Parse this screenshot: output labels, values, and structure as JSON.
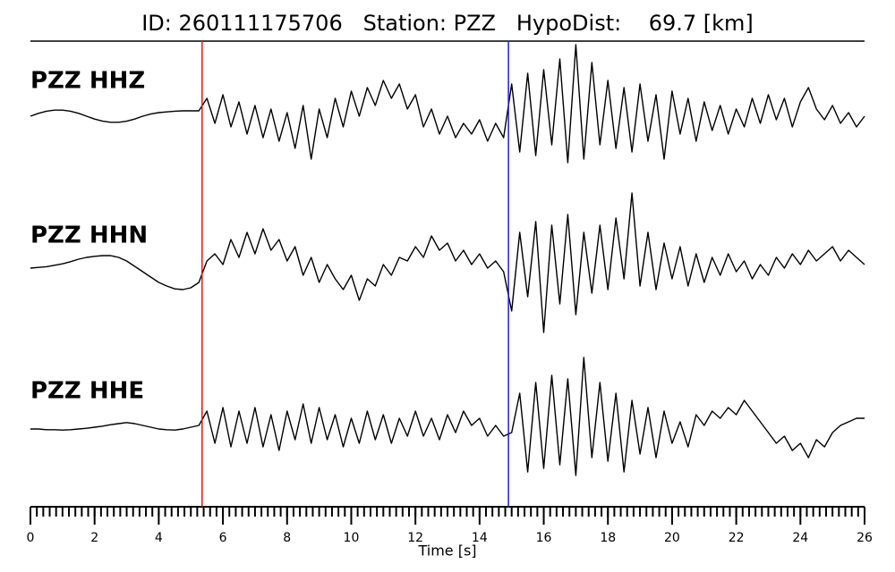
{
  "chart_data": {
    "type": "line",
    "title": "ID: 260111175706   Station: PZZ   HypoDist:    69.7 [km]",
    "xlabel": "Time [s]",
    "x": [
      0,
      0.25,
      0.5,
      0.75,
      1,
      1.25,
      1.5,
      1.75,
      2,
      2.25,
      2.5,
      2.75,
      3,
      3.25,
      3.5,
      3.75,
      4,
      4.25,
      4.5,
      4.75,
      5,
      5.25,
      5.5,
      5.75,
      6,
      6.25,
      6.5,
      6.75,
      7,
      7.25,
      7.5,
      7.75,
      8,
      8.25,
      8.5,
      8.75,
      9,
      9.25,
      9.5,
      9.75,
      10,
      10.25,
      10.5,
      10.75,
      11,
      11.25,
      11.5,
      11.75,
      12,
      12.25,
      12.5,
      12.75,
      13,
      13.25,
      13.5,
      13.75,
      14,
      14.25,
      14.5,
      14.75,
      15,
      15.25,
      15.5,
      15.75,
      16,
      16.25,
      16.5,
      16.75,
      17,
      17.25,
      17.5,
      17.75,
      18,
      18.25,
      18.5,
      18.75,
      19,
      19.25,
      19.5,
      19.75,
      20,
      20.25,
      20.5,
      20.75,
      21,
      21.25,
      21.5,
      21.75,
      22,
      22.25,
      22.5,
      22.75,
      23,
      23.25,
      23.5,
      23.75,
      24,
      24.25,
      24.5,
      24.75,
      25,
      25.25,
      25.5,
      25.75,
      26
    ],
    "series": [
      {
        "name": "PZZ HHZ",
        "color": "#000000",
        "values": [
          0,
          0.08,
          0.14,
          0.17,
          0.17,
          0.14,
          0.08,
          0,
          -0.08,
          -0.14,
          -0.17,
          -0.17,
          -0.14,
          -0.08,
          0,
          0.06,
          0.1,
          0.12,
          0.14,
          0.15,
          0.15,
          0.15,
          0.5,
          -0.2,
          0.6,
          -0.3,
          0.4,
          -0.5,
          0.3,
          -0.6,
          0.2,
          -0.7,
          0.1,
          -0.9,
          0.3,
          -1.2,
          0.2,
          -0.6,
          0.5,
          -0.3,
          0.7,
          0,
          0.8,
          0.3,
          1.0,
          0.5,
          0.9,
          0.2,
          0.6,
          -0.3,
          0.2,
          -0.5,
          0,
          -0.6,
          -0.2,
          -0.5,
          -0.1,
          -0.7,
          -0.2,
          -0.6,
          0.9,
          -1.0,
          1.2,
          -1.1,
          1.3,
          -0.8,
          1.6,
          -1.3,
          2.0,
          -1.2,
          1.5,
          -0.8,
          1.0,
          -0.9,
          0.8,
          -1.0,
          0.9,
          -0.7,
          0.6,
          -1.2,
          0.7,
          -0.5,
          0.5,
          -0.7,
          0.4,
          -0.4,
          0.3,
          -0.5,
          0.2,
          -0.3,
          0.5,
          -0.2,
          0.6,
          -0.1,
          0.5,
          -0.3,
          0.4,
          0.8,
          0.2,
          -0.1,
          0.3,
          -0.2,
          0.1,
          -0.3,
          0
        ]
      },
      {
        "name": "PZZ HHN",
        "color": "#000000",
        "values": [
          0,
          0.02,
          0.04,
          0.08,
          0.12,
          0.18,
          0.25,
          0.3,
          0.33,
          0.35,
          0.35,
          0.3,
          0.2,
          0.05,
          -0.1,
          -0.25,
          -0.4,
          -0.5,
          -0.58,
          -0.6,
          -0.55,
          -0.4,
          0.2,
          0.4,
          0.1,
          0.8,
          0.3,
          1.0,
          0.4,
          1.1,
          0.5,
          0.8,
          0.2,
          0.6,
          -0.2,
          0.3,
          -0.4,
          0.1,
          -0.3,
          -0.6,
          -0.2,
          -0.9,
          -0.3,
          -0.5,
          0.1,
          -0.2,
          0.3,
          0.2,
          0.6,
          0.3,
          0.9,
          0.5,
          0.7,
          0.2,
          0.5,
          0.1,
          0.4,
          0,
          0.2,
          -0.1,
          -1.2,
          1.0,
          -0.8,
          1.3,
          -1.8,
          1.2,
          -1.0,
          1.5,
          -1.3,
          1.0,
          -0.7,
          1.2,
          -0.6,
          1.4,
          -0.3,
          2.1,
          -0.5,
          1.0,
          -0.6,
          0.7,
          -0.3,
          0.6,
          -0.5,
          0.4,
          -0.4,
          0.3,
          -0.2,
          0.4,
          -0.1,
          0.2,
          -0.3,
          0.1,
          -0.2,
          0.3,
          0,
          0.4,
          0.1,
          0.5,
          0.2,
          0.4,
          0.6,
          0.2,
          0.5,
          0.3,
          0.1
        ]
      },
      {
        "name": "PZZ HHE",
        "color": "#000000",
        "values": [
          0,
          0,
          -0.02,
          -0.02,
          -0.03,
          -0.02,
          0,
          0.02,
          0.05,
          0.08,
          0.12,
          0.15,
          0.18,
          0.15,
          0.1,
          0.05,
          0,
          -0.02,
          -0.03,
          0,
          0.05,
          0.1,
          0.5,
          -0.4,
          0.6,
          -0.5,
          0.5,
          -0.4,
          0.6,
          -0.5,
          0.4,
          -0.6,
          0.5,
          -0.3,
          0.7,
          -0.4,
          0.6,
          -0.3,
          0.4,
          -0.5,
          0.3,
          -0.4,
          0.5,
          -0.3,
          0.4,
          -0.4,
          0.3,
          -0.2,
          0.5,
          -0.2,
          0.3,
          -0.3,
          0.4,
          -0.1,
          0.5,
          0.1,
          0.3,
          -0.2,
          0.1,
          -0.2,
          -0.1,
          1.0,
          -1.2,
          1.3,
          -1.1,
          1.5,
          -1.0,
          1.4,
          -1.3,
          2.0,
          -0.8,
          1.3,
          -0.9,
          1.0,
          -1.2,
          0.8,
          -0.7,
          0.6,
          -0.8,
          0.5,
          -0.4,
          0.2,
          -0.5,
          0.4,
          0.1,
          0.5,
          0.3,
          0.6,
          0.4,
          0.8,
          0.5,
          0.2,
          -0.1,
          -0.4,
          -0.2,
          -0.6,
          -0.4,
          -0.8,
          -0.3,
          -0.5,
          -0.1,
          0.1,
          0.2,
          0.3,
          0.3
        ]
      }
    ],
    "label_color": "#4c9a00",
    "picks": [
      {
        "time": 5.35,
        "color": "#e8141b"
      },
      {
        "time": 14.9,
        "color": "#1f1fd6"
      }
    ],
    "xlim": [
      0,
      26
    ],
    "xticks": [
      0,
      2,
      4,
      6,
      8,
      10,
      12,
      14,
      16,
      18,
      20,
      22,
      24,
      26
    ],
    "minor_tick_step": 0.2
  }
}
